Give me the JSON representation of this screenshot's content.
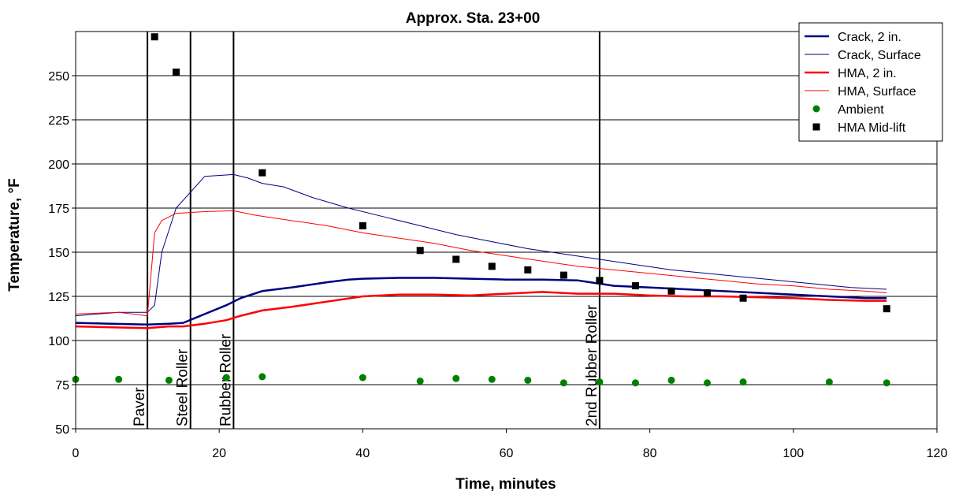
{
  "chart_data": {
    "type": "line",
    "title": "Approx. Sta. 23+00",
    "xlabel": "Time, minutes",
    "ylabel": "Temperature, °F",
    "xlim": [
      0,
      120
    ],
    "ylim": [
      50,
      275
    ],
    "x_ticks": [
      0,
      20,
      40,
      60,
      80,
      100,
      120
    ],
    "y_ticks": [
      50,
      75,
      100,
      125,
      150,
      175,
      200,
      225,
      250
    ],
    "grid": "horizontal",
    "legend_position": "top-right",
    "events": [
      {
        "x": 10,
        "label": "Paver"
      },
      {
        "x": 16,
        "label": "Steel Roller"
      },
      {
        "x": 22,
        "label": "Rubber Roller"
      },
      {
        "x": 73,
        "label": "2nd Rubber Roller"
      }
    ],
    "series": [
      {
        "name": "Crack, 2 in.",
        "style": "line",
        "color": "#000080",
        "width": 2.5,
        "x": [
          0,
          5,
          10,
          13,
          15,
          18,
          21,
          23,
          26,
          30,
          35,
          38,
          40,
          45,
          50,
          55,
          60,
          65,
          70,
          75,
          80,
          85,
          90,
          95,
          100,
          105,
          110,
          113
        ],
        "y": [
          110,
          109.5,
          109,
          109.5,
          110,
          115,
          120,
          124,
          128,
          130,
          133,
          134.5,
          135,
          135.5,
          135.5,
          135,
          134.5,
          134.5,
          134,
          131,
          130,
          129,
          128,
          127,
          126,
          125,
          124,
          124
        ]
      },
      {
        "name": "Crack, Surface",
        "style": "line",
        "color": "#000080",
        "width": 1,
        "x": [
          0,
          6,
          10,
          11,
          12,
          14,
          18,
          22,
          24,
          26,
          29,
          33,
          38,
          43,
          48,
          53,
          58,
          63,
          68,
          73,
          78,
          83,
          88,
          93,
          98,
          103,
          108,
          113
        ],
        "y": [
          114,
          116,
          116,
          120,
          150,
          175,
          193,
          194,
          192,
          189,
          187,
          181,
          175,
          170,
          165,
          160,
          156,
          152,
          149,
          146,
          143,
          140,
          138,
          136,
          134,
          132,
          130,
          129
        ]
      },
      {
        "name": "HMA, 2 in.",
        "style": "line",
        "color": "#ff0000",
        "width": 2.5,
        "x": [
          0,
          5,
          10,
          13,
          15,
          18,
          21,
          23,
          26,
          30,
          35,
          40,
          45,
          50,
          55,
          60,
          65,
          70,
          75,
          80,
          85,
          90,
          95,
          100,
          105,
          110,
          113
        ],
        "y": [
          108,
          107.5,
          107,
          108,
          108,
          109.5,
          111.5,
          114,
          117,
          119,
          122,
          125,
          126,
          126,
          125.5,
          126.5,
          127.5,
          126.5,
          126.5,
          125.5,
          125,
          125,
          124.5,
          124,
          123,
          122.5,
          122.5
        ]
      },
      {
        "name": "HMA, Surface",
        "style": "line",
        "color": "#ff0000",
        "width": 1,
        "x": [
          0,
          6,
          10,
          11,
          12,
          14,
          18,
          22,
          25,
          30,
          35,
          40,
          45,
          50,
          55,
          60,
          65,
          70,
          75,
          80,
          85,
          90,
          95,
          100,
          105,
          110,
          113
        ],
        "y": [
          115,
          116,
          114,
          161,
          168,
          172,
          173,
          173.5,
          171,
          168,
          165,
          161,
          158,
          155,
          151,
          148,
          145,
          142,
          140,
          138,
          136,
          134,
          132,
          131,
          129,
          128,
          127
        ]
      },
      {
        "name": "Ambient",
        "style": "marker",
        "marker": "circle",
        "color": "#008000",
        "x": [
          0,
          6,
          13,
          21,
          26,
          40,
          48,
          53,
          58,
          63,
          68,
          73,
          78,
          83,
          88,
          93,
          105,
          113
        ],
        "y": [
          78,
          78,
          77.5,
          79,
          79.5,
          79,
          77,
          78.5,
          78,
          77.5,
          76,
          76.5,
          76,
          77.5,
          76,
          76.5,
          76.5,
          76
        ]
      },
      {
        "name": "HMA Mid-lift",
        "style": "marker",
        "marker": "square",
        "color": "#000000",
        "x": [
          11,
          14,
          26,
          40,
          48,
          53,
          58,
          63,
          68,
          73,
          78,
          83,
          88,
          93,
          113
        ],
        "y": [
          272,
          252,
          195,
          165,
          151,
          146,
          142,
          140,
          137,
          134,
          131,
          128,
          127,
          124,
          118
        ]
      }
    ]
  }
}
